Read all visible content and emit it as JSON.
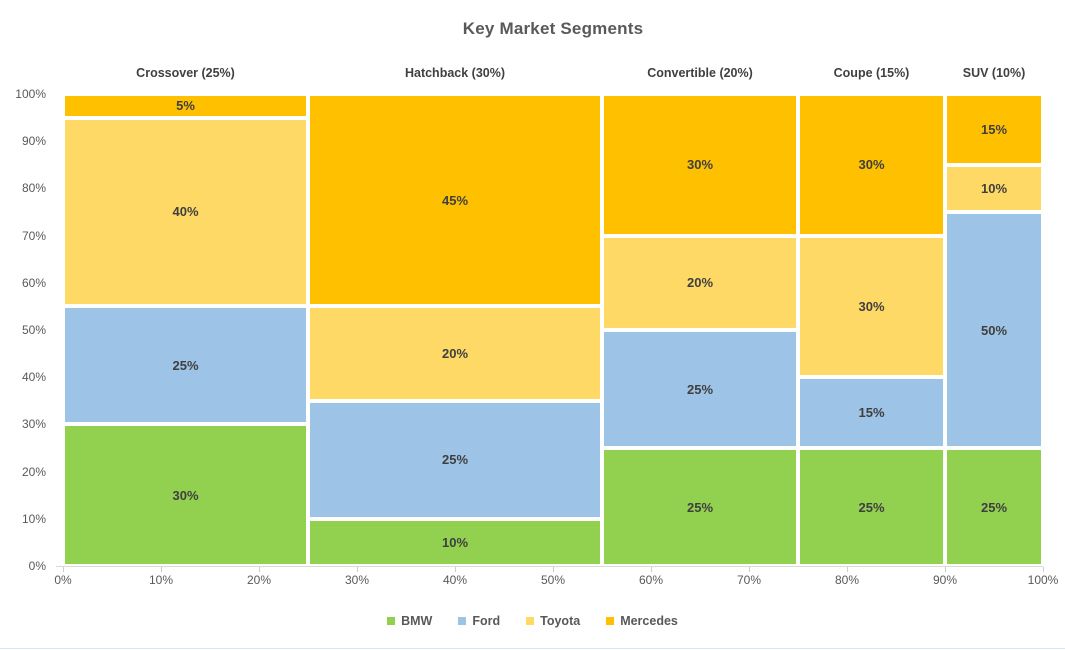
{
  "title": "Key Market Segments",
  "chart_data": {
    "type": "bar",
    "subtype": "marimekko-100pct-stacked",
    "title": "Key Market Segments",
    "categories": [
      "Crossover",
      "Hatchback",
      "Convertible",
      "Coupe",
      "SUV"
    ],
    "category_labels": [
      "Crossover (25%)",
      "Hatchback (30%)",
      "Convertible (20%)",
      "Coupe (15%)",
      "SUV (10%)"
    ],
    "category_widths_pct": [
      25,
      30,
      20,
      15,
      10
    ],
    "stack_order_bottom_to_top": [
      "BMW",
      "Ford",
      "Toyota",
      "Mercedes"
    ],
    "series": [
      {
        "name": "BMW",
        "color": "#92D050",
        "values": [
          30,
          10,
          25,
          25,
          25
        ]
      },
      {
        "name": "Ford",
        "color": "#9DC3E6",
        "values": [
          25,
          25,
          25,
          15,
          50
        ]
      },
      {
        "name": "Toyota",
        "color": "#FFD966",
        "values": [
          40,
          20,
          20,
          30,
          10
        ]
      },
      {
        "name": "Mercedes",
        "color": "#FFC000",
        "values": [
          5,
          45,
          30,
          30,
          15
        ]
      }
    ],
    "data_label_suffix": "%",
    "x_ticks": [
      "0%",
      "10%",
      "20%",
      "30%",
      "40%",
      "50%",
      "60%",
      "70%",
      "80%",
      "90%",
      "100%"
    ],
    "y_ticks": [
      "0%",
      "10%",
      "20%",
      "30%",
      "40%",
      "50%",
      "60%",
      "70%",
      "80%",
      "90%",
      "100%"
    ],
    "xlim": [
      0,
      100
    ],
    "ylim": [
      0,
      100
    ],
    "grid": false,
    "legend_position": "bottom"
  },
  "legend": {
    "items": [
      {
        "label": "BMW",
        "color": "#92D050"
      },
      {
        "label": "Ford",
        "color": "#9DC3E6"
      },
      {
        "label": "Toyota",
        "color": "#FFD966"
      },
      {
        "label": "Mercedes",
        "color": "#FFC000"
      }
    ]
  },
  "colors": {
    "title_text": "#595959",
    "header_text": "#404040",
    "segment_label_text": "#3f3f3f",
    "axis_text": "#595959",
    "axis_line": "#d9d9d9",
    "background": "#ffffff"
  }
}
